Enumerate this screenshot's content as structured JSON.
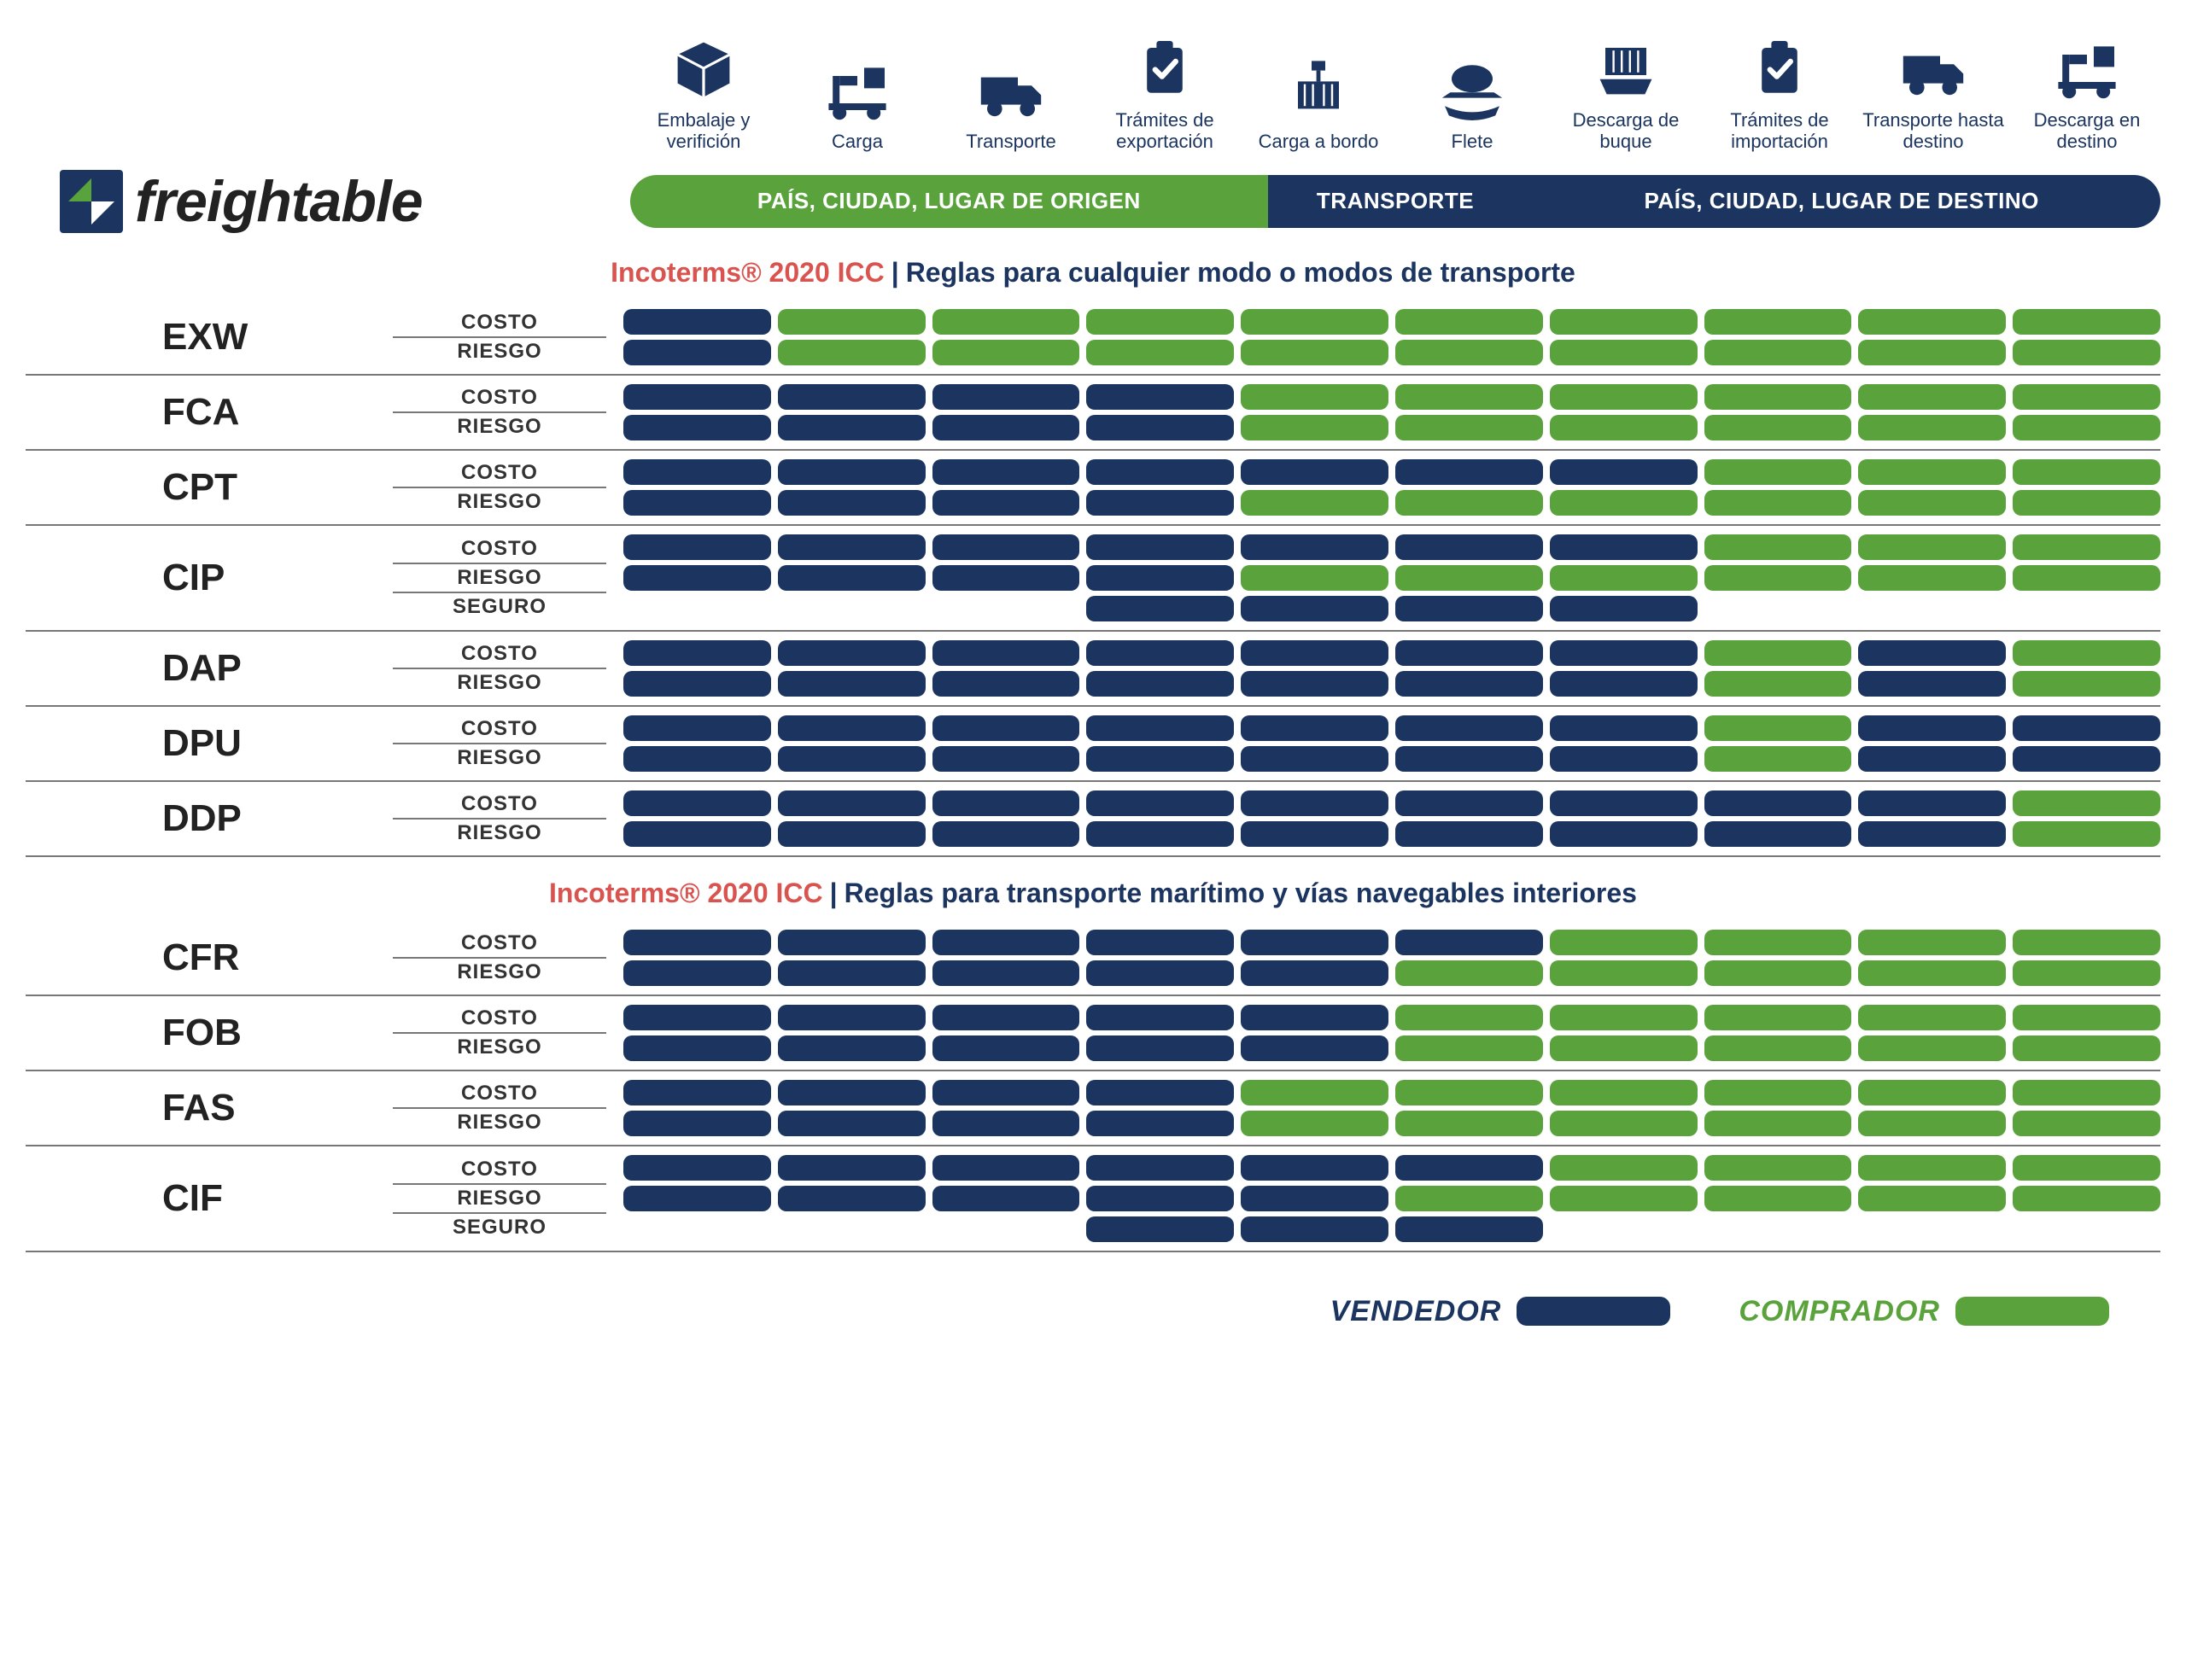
{
  "brand": {
    "name": "freightable"
  },
  "colors": {
    "seller": "#1b3560",
    "buyer": "#5aa33c",
    "accent_red": "#d9534f",
    "text_dark": "#222222",
    "rule": "#777777",
    "bg": "#ffffff"
  },
  "icons": [
    {
      "id": "packaging",
      "label": "Embalaje y verifición"
    },
    {
      "id": "loading",
      "label": "Carga"
    },
    {
      "id": "transport",
      "label": "Transporte"
    },
    {
      "id": "export-docs",
      "label": "Trámites de exportación"
    },
    {
      "id": "onboard",
      "label": "Carga a bordo"
    },
    {
      "id": "freight",
      "label": "Flete"
    },
    {
      "id": "unload-ship",
      "label": "Descarga de buque"
    },
    {
      "id": "import-docs",
      "label": "Trámites de importación"
    },
    {
      "id": "transport-dest",
      "label": "Transporte hasta destino"
    },
    {
      "id": "unload-dest",
      "label": "Descarga en destino"
    }
  ],
  "locationBar": {
    "origin": "PAÍS, CIUDAD, LUGAR DE ORIGEN",
    "transport": "TRANSPORTE",
    "destination": "PAÍS, CIUDAD, LUGAR DE DESTINO"
  },
  "row_labels": {
    "cost": "COSTO",
    "risk": "RIESGO",
    "insurance": "SEGURO"
  },
  "sections": [
    {
      "title_prefix": "Incoterms® 2020 ICC",
      "title_suffix": "Reglas para cualquier modo o modos de transporte",
      "terms": [
        {
          "code": "EXW",
          "rows": [
            {
              "label_key": "cost",
              "cells": [
                "S",
                "B",
                "B",
                "B",
                "B",
                "B",
                "B",
                "B",
                "B",
                "B"
              ]
            },
            {
              "label_key": "risk",
              "cells": [
                "S",
                "B",
                "B",
                "B",
                "B",
                "B",
                "B",
                "B",
                "B",
                "B"
              ]
            }
          ]
        },
        {
          "code": "FCA",
          "rows": [
            {
              "label_key": "cost",
              "cells": [
                "S",
                "S",
                "S",
                "S",
                "B",
                "B",
                "B",
                "B",
                "B",
                "B"
              ]
            },
            {
              "label_key": "risk",
              "cells": [
                "S",
                "S",
                "S",
                "S",
                "B",
                "B",
                "B",
                "B",
                "B",
                "B"
              ]
            }
          ]
        },
        {
          "code": "CPT",
          "rows": [
            {
              "label_key": "cost",
              "cells": [
                "S",
                "S",
                "S",
                "S",
                "S",
                "S",
                "S",
                "B",
                "B",
                "B"
              ]
            },
            {
              "label_key": "risk",
              "cells": [
                "S",
                "S",
                "S",
                "S",
                "B",
                "B",
                "B",
                "B",
                "B",
                "B"
              ]
            }
          ]
        },
        {
          "code": "CIP",
          "rows": [
            {
              "label_key": "cost",
              "cells": [
                "S",
                "S",
                "S",
                "S",
                "S",
                "S",
                "S",
                "B",
                "B",
                "B"
              ]
            },
            {
              "label_key": "risk",
              "cells": [
                "S",
                "S",
                "S",
                "S",
                "B",
                "B",
                "B",
                "B",
                "B",
                "B"
              ]
            },
            {
              "label_key": "insurance",
              "cells": [
                "E",
                "E",
                "E",
                "S",
                "S",
                "S",
                "S",
                "E",
                "E",
                "E"
              ]
            }
          ]
        },
        {
          "code": "DAP",
          "rows": [
            {
              "label_key": "cost",
              "cells": [
                "S",
                "S",
                "S",
                "S",
                "S",
                "S",
                "S",
                "B",
                "S",
                "B"
              ]
            },
            {
              "label_key": "risk",
              "cells": [
                "S",
                "S",
                "S",
                "S",
                "S",
                "S",
                "S",
                "B",
                "S",
                "B"
              ]
            }
          ]
        },
        {
          "code": "DPU",
          "rows": [
            {
              "label_key": "cost",
              "cells": [
                "S",
                "S",
                "S",
                "S",
                "S",
                "S",
                "S",
                "B",
                "S",
                "S"
              ]
            },
            {
              "label_key": "risk",
              "cells": [
                "S",
                "S",
                "S",
                "S",
                "S",
                "S",
                "S",
                "B",
                "S",
                "S"
              ]
            }
          ]
        },
        {
          "code": "DDP",
          "rows": [
            {
              "label_key": "cost",
              "cells": [
                "S",
                "S",
                "S",
                "S",
                "S",
                "S",
                "S",
                "S",
                "S",
                "B"
              ]
            },
            {
              "label_key": "risk",
              "cells": [
                "S",
                "S",
                "S",
                "S",
                "S",
                "S",
                "S",
                "S",
                "S",
                "B"
              ]
            }
          ]
        }
      ]
    },
    {
      "title_prefix": "Incoterms® 2020 ICC",
      "title_suffix": "Reglas para transporte marítimo y vías navegables interiores",
      "terms": [
        {
          "code": "CFR",
          "rows": [
            {
              "label_key": "cost",
              "cells": [
                "S",
                "S",
                "S",
                "S",
                "S",
                "S",
                "B",
                "B",
                "B",
                "B"
              ]
            },
            {
              "label_key": "risk",
              "cells": [
                "S",
                "S",
                "S",
                "S",
                "S",
                "B",
                "B",
                "B",
                "B",
                "B"
              ]
            }
          ]
        },
        {
          "code": "FOB",
          "rows": [
            {
              "label_key": "cost",
              "cells": [
                "S",
                "S",
                "S",
                "S",
                "S",
                "B",
                "B",
                "B",
                "B",
                "B"
              ]
            },
            {
              "label_key": "risk",
              "cells": [
                "S",
                "S",
                "S",
                "S",
                "S",
                "B",
                "B",
                "B",
                "B",
                "B"
              ]
            }
          ]
        },
        {
          "code": "FAS",
          "rows": [
            {
              "label_key": "cost",
              "cells": [
                "S",
                "S",
                "S",
                "S",
                "B",
                "B",
                "B",
                "B",
                "B",
                "B"
              ]
            },
            {
              "label_key": "risk",
              "cells": [
                "S",
                "S",
                "S",
                "S",
                "B",
                "B",
                "B",
                "B",
                "B",
                "B"
              ]
            }
          ]
        },
        {
          "code": "CIF",
          "rows": [
            {
              "label_key": "cost",
              "cells": [
                "S",
                "S",
                "S",
                "S",
                "S",
                "S",
                "B",
                "B",
                "B",
                "B"
              ]
            },
            {
              "label_key": "risk",
              "cells": [
                "S",
                "S",
                "S",
                "S",
                "S",
                "B",
                "B",
                "B",
                "B",
                "B"
              ]
            },
            {
              "label_key": "insurance",
              "cells": [
                "E",
                "E",
                "E",
                "S",
                "S",
                "S",
                "E",
                "E",
                "E",
                "E"
              ]
            }
          ]
        }
      ]
    }
  ],
  "legend": {
    "seller": "VENDEDOR",
    "buyer": "COMPRADOR"
  }
}
